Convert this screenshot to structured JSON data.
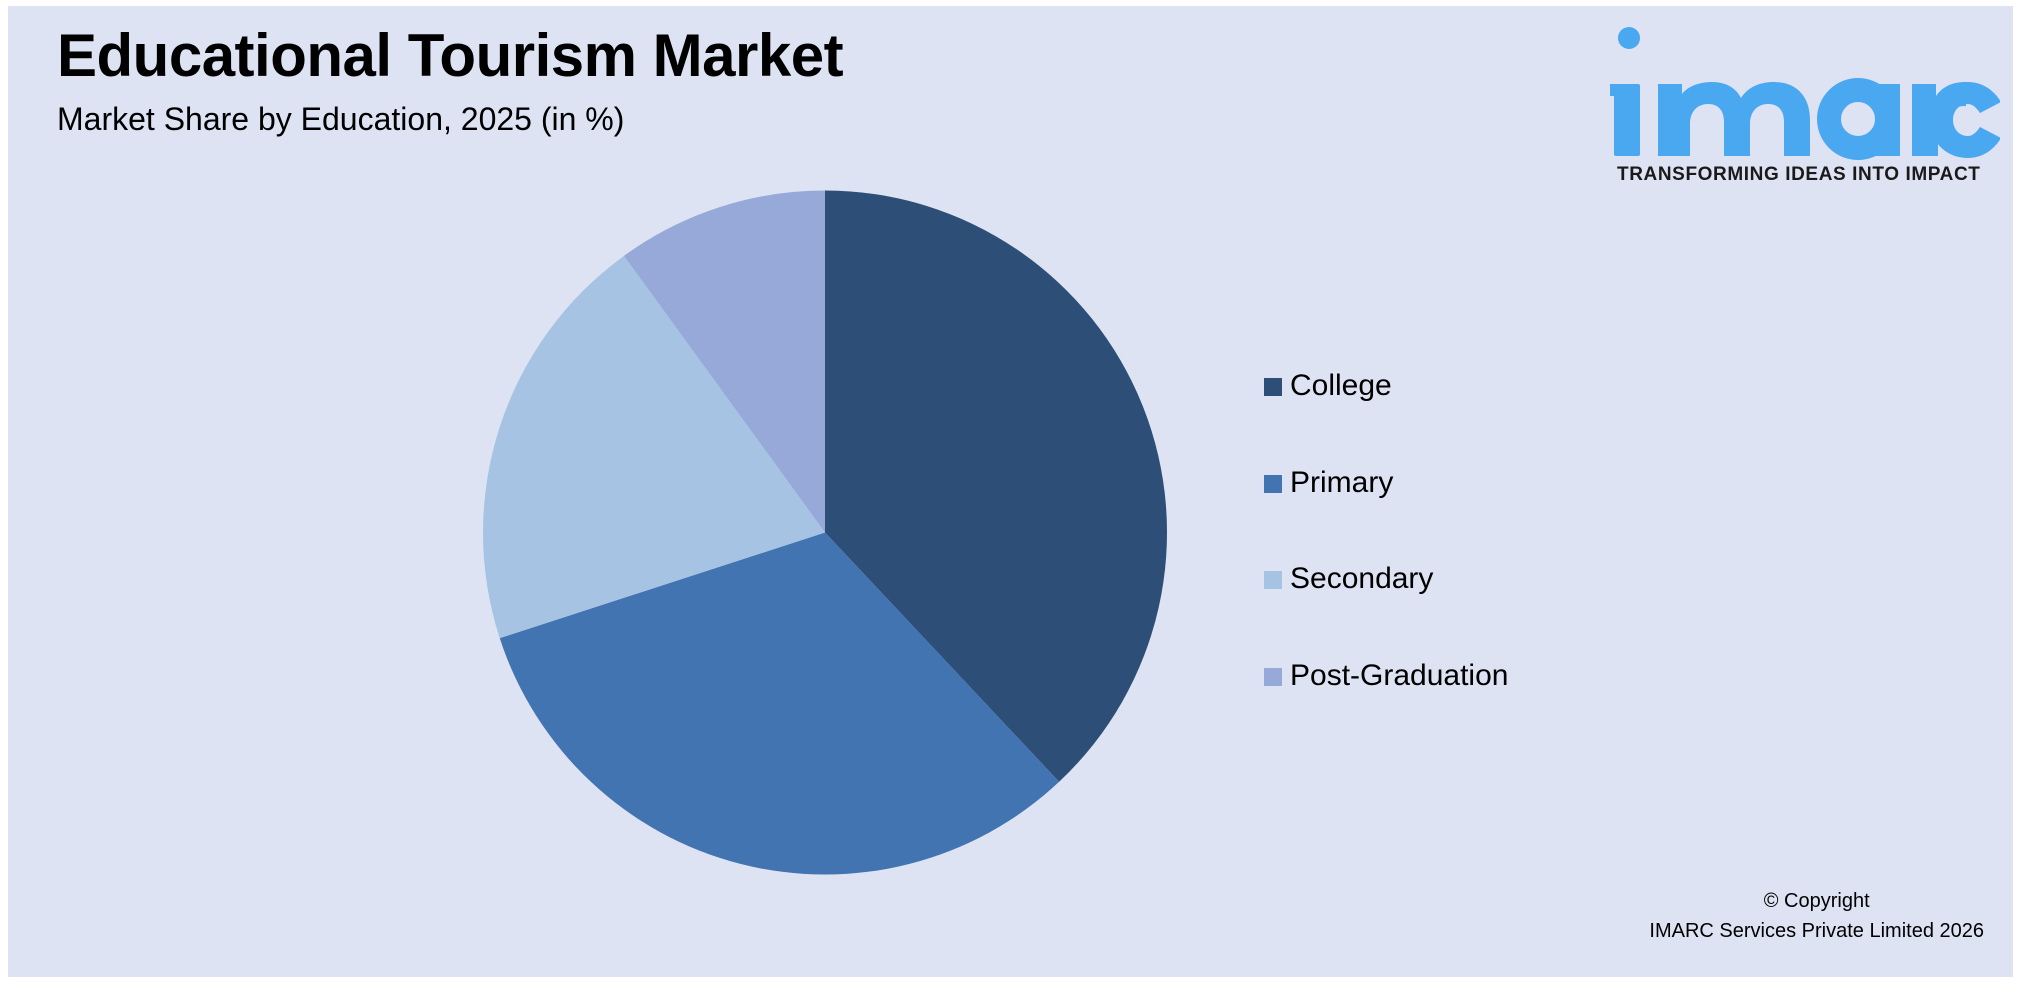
{
  "header": {
    "title": "Educational Tourism Market",
    "subtitle": "Market Share by Education, 2025 (in %)"
  },
  "logo": {
    "word": "imarc",
    "tagline": "TRANSFORMING IDEAS INTO IMPACT",
    "color": "#4aa8f0"
  },
  "legend": {
    "items": [
      {
        "label": "College",
        "color": "#2c4e77"
      },
      {
        "label": "Primary",
        "color": "#4174b0"
      },
      {
        "label": "Secondary",
        "color": "#a7c3e3"
      },
      {
        "label": "Post-Graduation",
        "color": "#96a9d8"
      }
    ]
  },
  "footer": {
    "copyright_line1": "© Copyright",
    "copyright_line2": "IMARC Services Private Limited 2026"
  },
  "colors": {
    "background": "#dde3f3"
  },
  "chart_data": {
    "type": "pie",
    "title": "Educational Tourism Market",
    "subtitle": "Market Share by Education, 2025 (in %)",
    "categories": [
      "College",
      "Primary",
      "Secondary",
      "Post-Graduation"
    ],
    "values": [
      38,
      32,
      20,
      10
    ],
    "colors": [
      "#2c4e77",
      "#4174b0",
      "#a7c3e3",
      "#96a9d8"
    ],
    "start_angle": "12 o'clock, clockwise",
    "data_labels": false,
    "legend_position": "right"
  }
}
